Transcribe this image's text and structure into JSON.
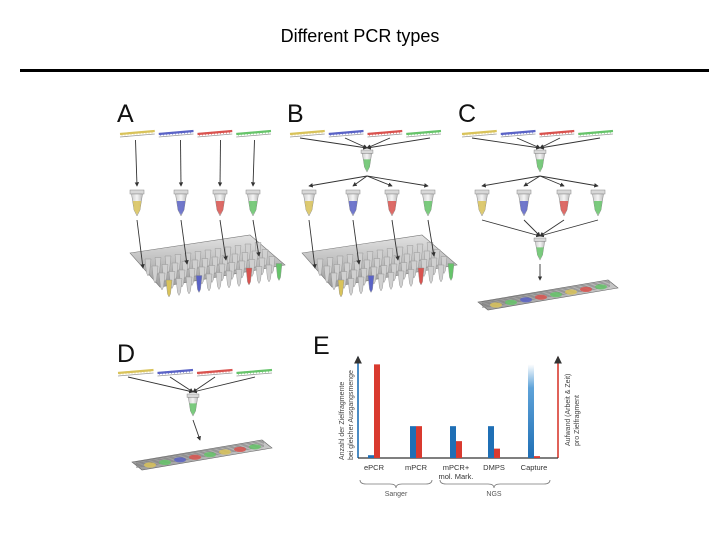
{
  "title": "Different PCR types",
  "panels": [
    {
      "id": "A",
      "label": "A"
    },
    {
      "id": "B",
      "label": "B"
    },
    {
      "id": "C",
      "label": "C"
    },
    {
      "id": "D",
      "label": "D"
    },
    {
      "id": "E",
      "label": "E"
    }
  ],
  "colors": {
    "yellow": "#d9c35a",
    "blue": "#5a63c6",
    "red": "#d9534f",
    "green": "#66c46a",
    "bar_blue": "#1f6fb5",
    "bar_red": "#d93a2f",
    "plate": "#bfbfbf"
  },
  "icons": [
    "dna-strand-icon",
    "pcr-tube-icon",
    "well-plate-icon",
    "sequencing-chip-icon"
  ],
  "chart_data": {
    "type": "bar",
    "categories": [
      "ePCR",
      "mPCR",
      "mPCR+\nmol. Mark.",
      "DMPS",
      "Capture"
    ],
    "category_labels": [
      "ePCR",
      "mPCR",
      "mPCR+",
      "DMPS",
      "Capture"
    ],
    "category_sublabels": [
      "",
      "",
      "mol. Mark.",
      "",
      ""
    ],
    "series": [
      {
        "values": [
          3,
          34,
          34,
          34,
          100
        ],
        "color": "#1f6fb5"
      },
      {
        "values": [
          100,
          34,
          18,
          10,
          2
        ],
        "color": "#d93a2f"
      }
    ],
    "ylabel_left": [
      "Anzahl der Zielfragmente",
      "bei gleicher Ausgangsmenge"
    ],
    "ylabel_right": [
      "Aufwand (Arbeit & Zeit)",
      "pro Zielfragment"
    ],
    "groups": [
      {
        "label": "Sanger",
        "from": 0,
        "to": 1
      },
      {
        "label": "NGS",
        "from": 2,
        "to": 4
      }
    ],
    "ylim": [
      0,
      110
    ],
    "grid": false
  }
}
